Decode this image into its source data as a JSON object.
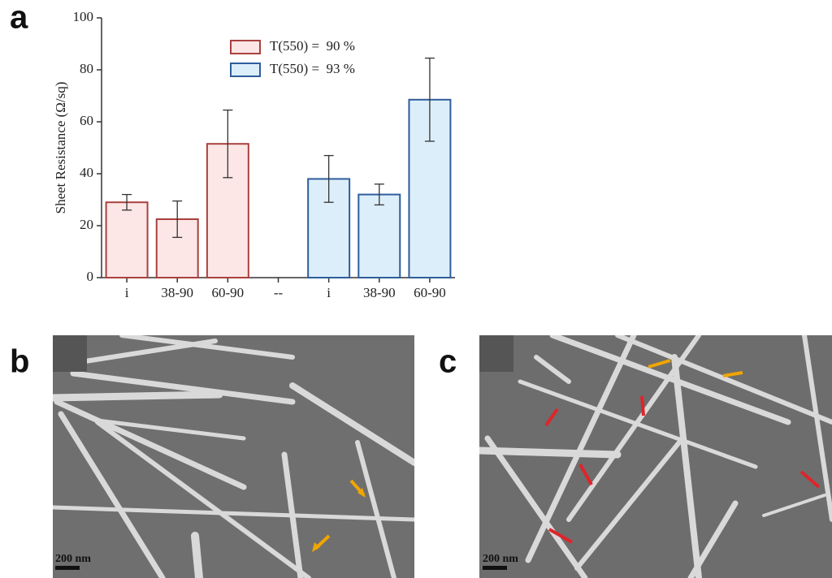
{
  "chart_data": {
    "type": "bar",
    "ylabel": "Sheet Resistance (Ω/sq)",
    "categories": [
      "i",
      "38-90",
      "60-90",
      "--",
      "i",
      "38-90",
      "60-90"
    ],
    "ylim": [
      0,
      100
    ],
    "yticks": [
      0,
      20,
      40,
      60,
      80,
      100
    ],
    "series": [
      {
        "name": "T(550) =  90 %",
        "color": "#a8413f",
        "fill": "#fce6e6",
        "values": [
          29,
          22.5,
          51.5,
          null,
          null,
          null,
          null
        ],
        "errors": [
          3,
          7,
          13,
          null,
          null,
          null,
          null
        ]
      },
      {
        "name": "T(550) =  93 %",
        "color": "#2f5d9c",
        "fill": "#dceefa",
        "values": [
          null,
          null,
          null,
          null,
          38,
          32,
          68.5
        ],
        "errors": [
          null,
          null,
          null,
          null,
          9,
          4,
          16
        ]
      }
    ]
  },
  "panels": [
    {
      "label": "a"
    },
    {
      "label": "b",
      "scale_bar": "200 nm"
    },
    {
      "label": "c",
      "scale_bar": "200 nm"
    }
  ]
}
